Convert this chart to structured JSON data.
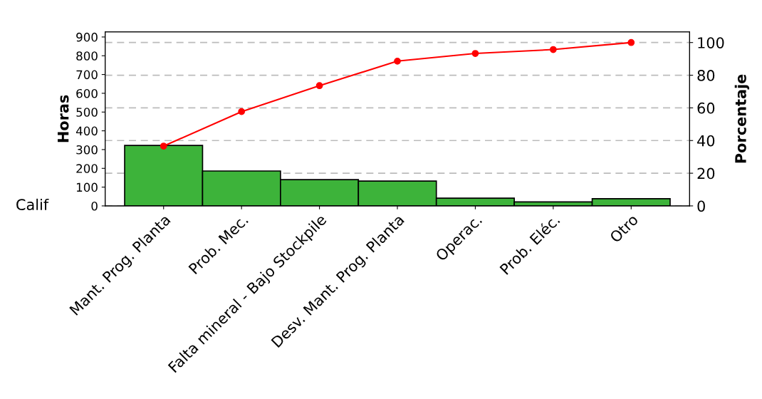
{
  "chart_data": {
    "type": "bar",
    "categories": [
      "Mant. Prog. Planta",
      "Prob. Mec.",
      "Falta mineral - Bajo Stockpile",
      "Desv. Mant. Prog. Planta",
      "Operac.",
      "Prob. Eléc.",
      "Otro"
    ],
    "series": [
      {
        "color": "#3db33a",
        "values": [
          322,
          186,
          140,
          132,
          41,
          21,
          38
        ]
      },
      {
        "type": "line",
        "axis": "y2",
        "color": "#ff0000",
        "values": [
          36.6,
          57.7,
          73.6,
          88.6,
          93.3,
          95.7,
          100
        ]
      }
    ],
    "xlabel": "Calif",
    "ylabel": "Horas",
    "y2label": "Porcentaje",
    "ylim": [
      0,
      927
    ],
    "yticks": [
      0,
      100,
      200,
      300,
      400,
      500,
      600,
      700,
      800,
      900
    ],
    "y2lim": [
      0,
      106.5
    ],
    "y2ticks": [
      0,
      20,
      40,
      60,
      80,
      100
    ],
    "grid": "y",
    "marker": "circle",
    "line_style": "solid",
    "legend": false
  }
}
